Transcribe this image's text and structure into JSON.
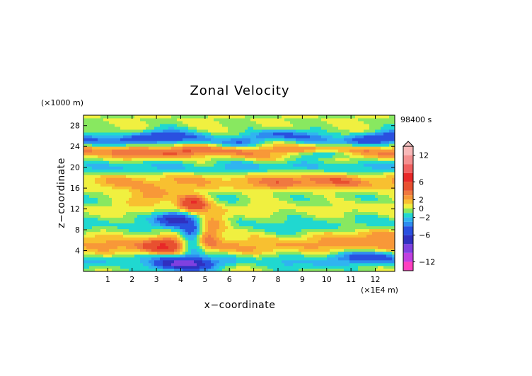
{
  "chart_data": {
    "type": "heatmap",
    "title": "Zonal Velocity",
    "xlabel": "x−coordinate",
    "ylabel": "z−coordinate",
    "x_unit": "(×1E4 m)",
    "y_unit": "(×1000 m)",
    "time_label": "98400 s",
    "xlim": [
      0,
      12.8
    ],
    "ylim": [
      0,
      30
    ],
    "x_ticks": [
      "1",
      "2",
      "3",
      "4",
      "5",
      "6",
      "7",
      "8",
      "9",
      "10",
      "11",
      "12"
    ],
    "y_ticks": [
      "4",
      "8",
      "12",
      "16",
      "20",
      "24",
      "28"
    ],
    "colorbar": {
      "range": [
        -14,
        14
      ],
      "tick_values": [
        12,
        6,
        2,
        0,
        -2,
        -6,
        -12
      ],
      "tick_labels": [
        "12",
        "6",
        "2",
        "0",
        "−2",
        "−6",
        "−12"
      ],
      "levels": [
        {
          "from": -14,
          "to": -12,
          "color": "#ff40c0"
        },
        {
          "from": -12,
          "to": -10,
          "color": "#c040e0"
        },
        {
          "from": -10,
          "to": -8,
          "color": "#8040e0"
        },
        {
          "from": -8,
          "to": -6,
          "color": "#3030c0"
        },
        {
          "from": -6,
          "to": -4,
          "color": "#2a50e0"
        },
        {
          "from": -4,
          "to": -3,
          "color": "#2e8cf0"
        },
        {
          "from": -3,
          "to": -2,
          "color": "#30b4f0"
        },
        {
          "from": -2,
          "to": -1,
          "color": "#20d8d0"
        },
        {
          "from": -1,
          "to": 0,
          "color": "#88e860"
        },
        {
          "from": 0,
          "to": 1,
          "color": "#f0f040"
        },
        {
          "from": 1,
          "to": 2,
          "color": "#f8c030"
        },
        {
          "from": 2,
          "to": 3,
          "color": "#f89838"
        },
        {
          "from": 3,
          "to": 4,
          "color": "#f07840"
        },
        {
          "from": 4,
          "to": 6,
          "color": "#e85030"
        },
        {
          "from": 6,
          "to": 8,
          "color": "#e82828"
        },
        {
          "from": 8,
          "to": 10,
          "color": "#f06060"
        },
        {
          "from": 10,
          "to": 12,
          "color": "#f49090"
        },
        {
          "from": 12,
          "to": 14,
          "color": "#f8b8b8"
        }
      ]
    },
    "field_bands": [
      {
        "z": 25.4,
        "amp": -5.5,
        "width": 0.9
      },
      {
        "z": 23.1,
        "amp": 4.5,
        "width": 1.0
      },
      {
        "z": 20.0,
        "amp": -2.5,
        "width": 1.2
      },
      {
        "z": 17.3,
        "amp": 2.5,
        "width": 1.3
      },
      {
        "z": 14.2,
        "amp": -1.2,
        "width": 1.5
      },
      {
        "z": 12.5,
        "amp": 1.0,
        "width": 1.4
      },
      {
        "z": 9.0,
        "amp": -1.5,
        "width": 1.3
      },
      {
        "z": 5.0,
        "amp": 2.2,
        "width": 1.3
      },
      {
        "z": 2.0,
        "amp": -2.2,
        "width": 1.0
      }
    ],
    "field_features": [
      {
        "x": 4.5,
        "z": 13.0,
        "amp": 6.0,
        "sx": 0.45,
        "sz": 1.3
      },
      {
        "x": 3.8,
        "z": 10.2,
        "amp": -7.0,
        "sx": 0.5,
        "sz": 1.0
      },
      {
        "x": 4.5,
        "z": 6.5,
        "amp": -6.0,
        "sx": 0.35,
        "sz": 2.5
      },
      {
        "x": 5.0,
        "z": 7.5,
        "amp": 4.0,
        "sx": 0.35,
        "sz": 2.0
      },
      {
        "x": 3.2,
        "z": 5.0,
        "amp": 4.0,
        "sx": 0.7,
        "sz": 1.3
      },
      {
        "x": 4.0,
        "z": 1.5,
        "amp": -7.0,
        "sx": 0.8,
        "sz": 1.0
      },
      {
        "x": 5.6,
        "z": 9.5,
        "amp": 3.0,
        "sx": 0.4,
        "sz": 1.5
      },
      {
        "x": 2.8,
        "z": 14.5,
        "amp": 3.5,
        "sx": 0.6,
        "sz": 1.0
      },
      {
        "x": 9.5,
        "z": 17.5,
        "amp": 2.0,
        "sx": 1.5,
        "sz": 1.0
      },
      {
        "x": 11.8,
        "z": 3.0,
        "amp": -4.0,
        "sx": 1.2,
        "sz": 0.8
      },
      {
        "x": 12.0,
        "z": 7.0,
        "amp": 3.0,
        "sx": 0.8,
        "sz": 1.0
      },
      {
        "x": 7.5,
        "z": 25.4,
        "amp": 2.5,
        "sx": 1.5,
        "sz": 0.6
      },
      {
        "x": 9.5,
        "z": 22.6,
        "amp": -4.0,
        "sx": 1.5,
        "sz": 0.6
      }
    ]
  }
}
